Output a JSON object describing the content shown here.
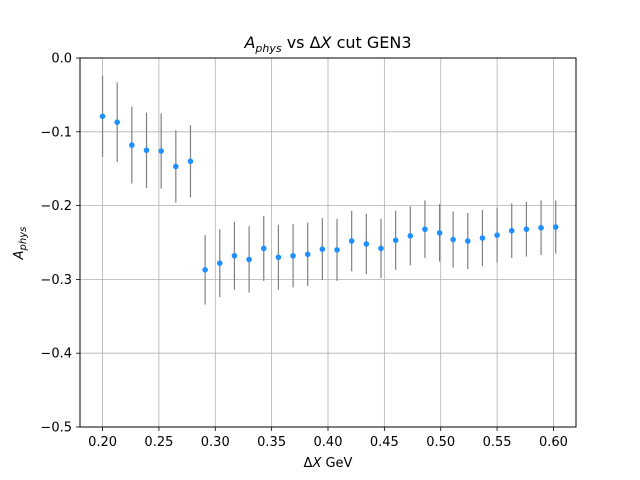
{
  "chart_data": {
    "type": "scatter",
    "title": "A_phys vs ΔX cut GEN3",
    "title_parts": {
      "base": "A",
      "sub": "phys",
      "mid": " vs Δ",
      "italic": "X",
      "tail": " cut GEN3"
    },
    "xlabel": "ΔX GeV",
    "xlabel_parts": {
      "delta": "Δ",
      "italic": "X",
      "tail": " GeV"
    },
    "ylabel": "A_phys",
    "ylabel_parts": {
      "base": "A",
      "sub": "phys"
    },
    "xlim": [
      0.18,
      0.62
    ],
    "ylim": [
      -0.5,
      0.0
    ],
    "xticks": [
      0.2,
      0.25,
      0.3,
      0.35,
      0.4,
      0.45,
      0.5,
      0.55,
      0.6
    ],
    "xtick_labels": [
      "0.20",
      "0.25",
      "0.30",
      "0.35",
      "0.40",
      "0.45",
      "0.50",
      "0.55",
      "0.60"
    ],
    "yticks": [
      0.0,
      -0.1,
      -0.2,
      -0.3,
      -0.4,
      -0.5
    ],
    "ytick_labels": [
      "0.0",
      "−0.1",
      "−0.2",
      "−0.3",
      "−0.4",
      "−0.5"
    ],
    "grid": true,
    "colors": {
      "marker": "#1e90ff",
      "errorbar": "#808080",
      "grid": "#b0b0b0"
    },
    "series": [
      {
        "x": [
          0.2,
          0.213,
          0.226,
          0.239,
          0.252,
          0.265,
          0.278,
          0.291,
          0.304,
          0.317,
          0.33,
          0.343,
          0.356,
          0.369,
          0.382,
          0.395,
          0.408,
          0.421,
          0.434,
          0.447,
          0.46,
          0.473,
          0.486,
          0.499,
          0.511,
          0.524,
          0.537,
          0.55,
          0.563,
          0.576,
          0.589,
          0.602
        ],
        "y": [
          -0.079,
          -0.087,
          -0.118,
          -0.125,
          -0.126,
          -0.147,
          -0.14,
          -0.287,
          -0.278,
          -0.268,
          -0.273,
          -0.258,
          -0.27,
          -0.268,
          -0.266,
          -0.259,
          -0.26,
          -0.248,
          -0.252,
          -0.258,
          -0.247,
          -0.241,
          -0.232,
          -0.237,
          -0.246,
          -0.248,
          -0.244,
          -0.24,
          -0.234,
          -0.232,
          -0.23,
          -0.229
        ],
        "err": [
          0.055,
          0.054,
          0.052,
          0.051,
          0.051,
          0.049,
          0.049,
          0.047,
          0.046,
          0.046,
          0.045,
          0.044,
          0.044,
          0.043,
          0.043,
          0.042,
          0.042,
          0.041,
          0.041,
          0.04,
          0.04,
          0.04,
          0.039,
          0.039,
          0.038,
          0.038,
          0.038,
          0.037,
          0.037,
          0.037,
          0.037,
          0.036
        ]
      }
    ]
  }
}
